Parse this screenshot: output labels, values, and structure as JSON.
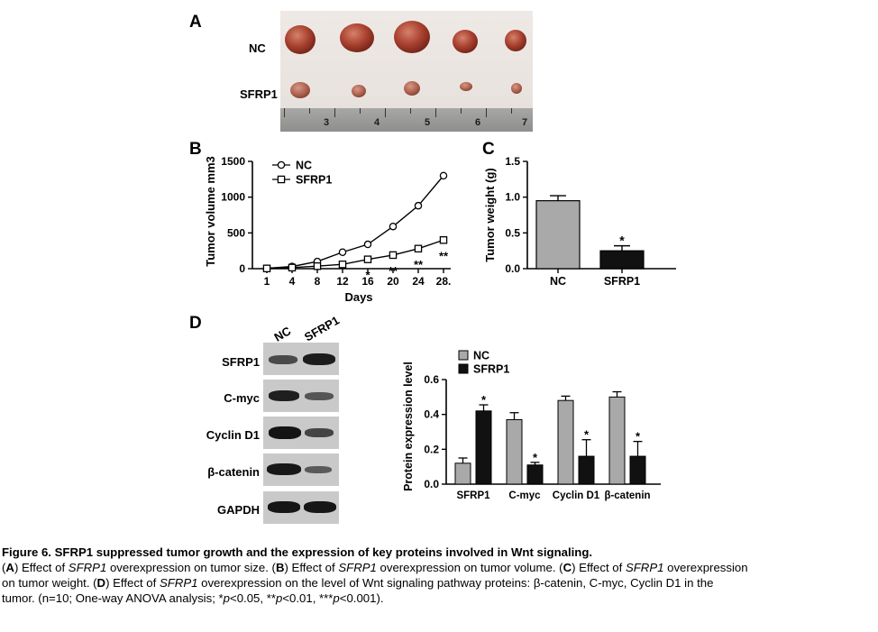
{
  "panels": {
    "a_letter": "A",
    "b_letter": "B",
    "c_letter": "C",
    "d_letter": "D"
  },
  "photo": {
    "row_labels": [
      "NC",
      "SFRP1"
    ],
    "ruler_numbers": [
      "3",
      "4",
      "5",
      "6",
      "7"
    ]
  },
  "blot": {
    "lane_labels": [
      "NC",
      "SFRP1"
    ],
    "proteins": [
      "SFRP1",
      "C-myc",
      "Cyclin D1",
      "β-catenin",
      "GAPDH"
    ]
  },
  "chart_data": [
    {
      "type": "line",
      "panel": "B",
      "xlabel": "Days",
      "ylabel": "Tumor volume mm3",
      "x": [
        "1",
        "4",
        "8",
        "12",
        "16",
        "20",
        "24",
        "28."
      ],
      "ylim": [
        0,
        1500
      ],
      "yticks": [
        "0",
        "500",
        "1000",
        "1500"
      ],
      "series": [
        {
          "name": "NC",
          "marker": "circle",
          "values": [
            5,
            30,
            100,
            230,
            340,
            590,
            880,
            1300
          ]
        },
        {
          "name": "SFRP1",
          "marker": "square",
          "values": [
            3,
            15,
            35,
            60,
            130,
            190,
            280,
            400
          ]
        }
      ],
      "annotations": [
        "*",
        "**",
        "**",
        "**"
      ],
      "legend": "top-left"
    },
    {
      "type": "bar",
      "panel": "C",
      "xlabel": "",
      "ylabel": "Tumor weight (g)",
      "categories": [
        "NC",
        "SFRP1"
      ],
      "values": [
        0.95,
        0.25
      ],
      "errors": [
        0.07,
        0.07
      ],
      "ylim": [
        0,
        1.5
      ],
      "yticks": [
        "0.0",
        "0.5",
        "1.0",
        "1.5"
      ],
      "bar_colors": [
        "#a9a9a9",
        "#111111"
      ],
      "annotations": [
        "",
        "*"
      ]
    },
    {
      "type": "bar",
      "panel": "D",
      "xlabel": "",
      "ylabel": "Protein expression level",
      "categories": [
        "SFRP1",
        "C-myc",
        "Cyclin D1",
        "β-catenin"
      ],
      "ylim": [
        0,
        0.6
      ],
      "yticks": [
        "0.0",
        "0.2",
        "0.4",
        "0.6"
      ],
      "series": [
        {
          "name": "NC",
          "color": "#a9a9a9",
          "values": [
            0.12,
            0.37,
            0.48,
            0.5
          ],
          "errors": [
            0.03,
            0.04,
            0.025,
            0.03
          ]
        },
        {
          "name": "SFRP1",
          "color": "#111111",
          "values": [
            0.42,
            0.11,
            0.16,
            0.16
          ],
          "errors": [
            0.035,
            0.015,
            0.095,
            0.085
          ]
        }
      ],
      "annotations": [
        "*",
        "*",
        "*",
        "*"
      ],
      "legend": "top-left"
    }
  ],
  "caption": {
    "title": "Figure 6. SFRP1 suppressed tumor growth and the expression of key proteins involved in Wnt signaling.",
    "line1_parts": [
      "(",
      "A",
      ") Effect of ",
      "SFRP1",
      " overexpression on tumor size. (",
      "B",
      ") Effect of ",
      "SFRP1",
      " overexpression on tumor volume. (",
      "C",
      ") Effect of ",
      "SFRP1",
      " overexpression"
    ],
    "line2_parts": [
      "on tumor weight. (",
      "D",
      ") Effect of ",
      "SFRP1",
      " overexpression on the level of Wnt signaling pathway proteins: β-catenin, C-myc, Cyclin D1 in the"
    ],
    "line3_parts": [
      "tumor. (n=10; One-way ANOVA analysis; *",
      "p",
      "<0.05, **",
      "p",
      "<0.01, ***",
      "p",
      "<0.001)."
    ]
  }
}
